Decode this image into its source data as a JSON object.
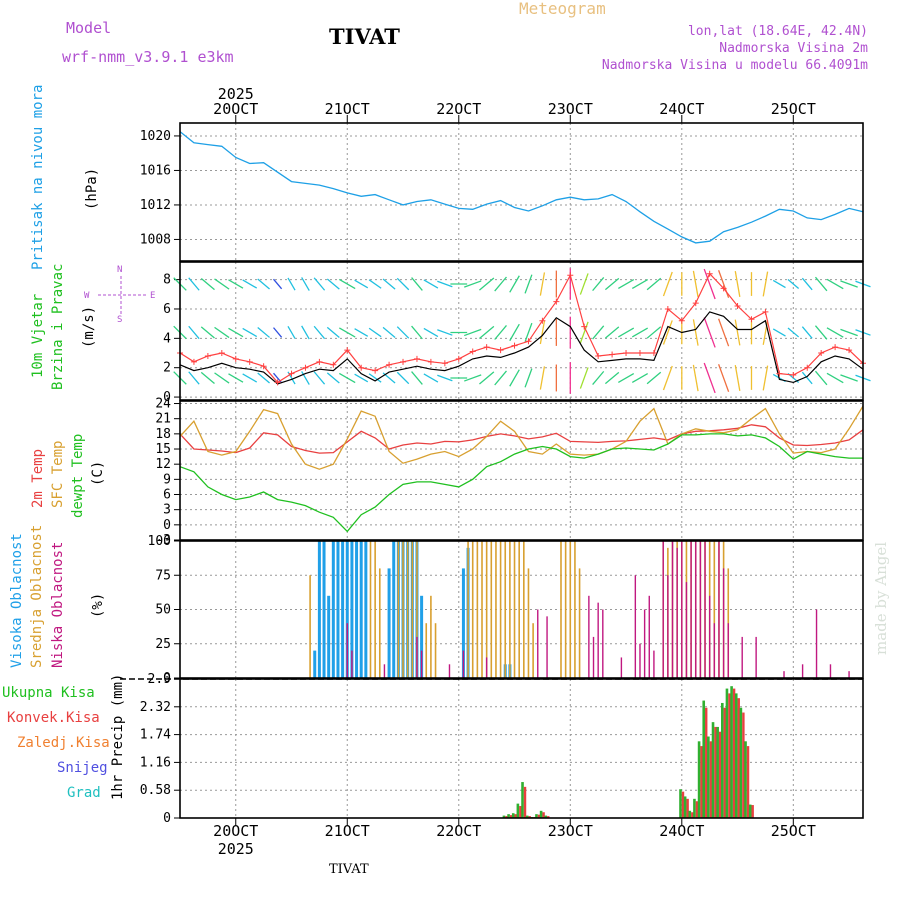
{
  "header": {
    "model_label": "Model",
    "model_name": "wrf-nmm_v3.9.1 e3km",
    "station": "TIVAT",
    "product": "Meteogram",
    "lonlat": "lon,lat (18.64E, 42.4N)",
    "elevation": "Nadmorska Visina 2m",
    "model_elevation": "Nadmorska Visina u modelu 66.4091m",
    "footer_station": "TIVAT",
    "credit": "made by Angel"
  },
  "colors": {
    "pressure": "#1ea0e6",
    "wind_speed": "#ff4040",
    "wind_gust": "#000000",
    "temp2m": "#e84040",
    "sfc_temp": "#d8a030",
    "dewpt": "#20c020",
    "high_cloud": "#20a0e8",
    "mid_cloud": "#d8a030",
    "low_cloud": "#c01880",
    "total_precip": "#30b030",
    "conv_precip": "#e84040",
    "strat_precip": "#f08030",
    "snow": "#5050e0",
    "hail": "#20c0c0"
  },
  "time_axis": {
    "top_year": "2025",
    "bottom_year": "2025",
    "day_labels": [
      "20OCT",
      "21OCT",
      "22OCT",
      "23OCT",
      "24OCT",
      "25OCT"
    ],
    "day_positions_hours": [
      12,
      36,
      60,
      84,
      108,
      132
    ],
    "range_hours": [
      0,
      147
    ]
  },
  "chart_data": [
    {
      "panel": "pressure",
      "type": "line",
      "ylabel_1": "Pritisak na nivou mora",
      "ylabel_2": "(hPa)",
      "unit": "hPa",
      "ylim": [
        1005.5,
        1021.5
      ],
      "yticks": [
        1008,
        1012,
        1016,
        1020
      ],
      "x": [
        0,
        3,
        6,
        9,
        12,
        15,
        18,
        21,
        24,
        27,
        30,
        33,
        36,
        39,
        42,
        45,
        48,
        51,
        54,
        57,
        60,
        63,
        66,
        69,
        72,
        75,
        78,
        81,
        84,
        87,
        90,
        93,
        96,
        99,
        102,
        105,
        108,
        111,
        114,
        117,
        120,
        123,
        126,
        129,
        132,
        135,
        138,
        141,
        144,
        147
      ],
      "values": [
        1020.5,
        1019.2,
        1019.0,
        1018.8,
        1017.5,
        1016.8,
        1016.9,
        1015.8,
        1014.7,
        1014.5,
        1014.3,
        1013.9,
        1013.4,
        1013.0,
        1013.2,
        1012.6,
        1012.0,
        1012.4,
        1012.6,
        1012.1,
        1011.6,
        1011.5,
        1012.1,
        1012.5,
        1011.7,
        1011.3,
        1011.9,
        1012.6,
        1012.9,
        1012.6,
        1012.7,
        1013.2,
        1012.4,
        1011.2,
        1010.1,
        1009.2,
        1008.3,
        1007.6,
        1007.8,
        1008.9,
        1009.4,
        1010.0,
        1010.7,
        1011.5,
        1011.3,
        1010.5,
        1010.3,
        1010.9,
        1011.6,
        1011.2
      ]
    },
    {
      "panel": "wind",
      "type": "line",
      "ylabel_1": "10m Vjetar",
      "ylabel_2": "Brzina i Pravac",
      "ylabel_3": "(m/s)",
      "compass": {
        "n": "N",
        "s": "S",
        "w": "W",
        "e": "E"
      },
      "ylim": [
        -0.2,
        9.2
      ],
      "yticks": [
        0,
        2,
        4,
        6,
        8
      ],
      "x": [
        0,
        3,
        6,
        9,
        12,
        15,
        18,
        21,
        24,
        27,
        30,
        33,
        36,
        39,
        42,
        45,
        48,
        51,
        54,
        57,
        60,
        63,
        66,
        69,
        72,
        75,
        78,
        81,
        84,
        87,
        90,
        93,
        96,
        99,
        102,
        105,
        108,
        111,
        114,
        117,
        120,
        123,
        126,
        129,
        132,
        135,
        138,
        141,
        144,
        147
      ],
      "series": [
        {
          "name": "speed",
          "values": [
            3.0,
            2.4,
            2.8,
            3.0,
            2.6,
            2.4,
            2.1,
            1.0,
            1.6,
            2.0,
            2.4,
            2.2,
            3.2,
            2.0,
            1.8,
            2.2,
            2.4,
            2.6,
            2.4,
            2.3,
            2.6,
            3.1,
            3.4,
            3.2,
            3.5,
            3.8,
            5.2,
            6.5,
            8.3,
            4.8,
            2.8,
            2.9,
            3.0,
            3.0,
            3.0,
            6.0,
            5.2,
            6.4,
            8.4,
            7.4,
            6.2,
            5.3,
            5.8,
            1.6,
            1.5,
            2.0,
            3.0,
            3.4,
            3.2,
            2.3
          ]
        },
        {
          "name": "gust",
          "values": [
            2.2,
            1.8,
            2.0,
            2.3,
            2.0,
            1.9,
            1.7,
            0.9,
            1.2,
            1.6,
            1.9,
            1.8,
            2.6,
            1.6,
            1.1,
            1.7,
            1.9,
            2.1,
            1.9,
            1.8,
            2.1,
            2.6,
            2.8,
            2.7,
            3.0,
            3.4,
            4.2,
            5.4,
            4.8,
            3.2,
            2.4,
            2.5,
            2.6,
            2.6,
            2.5,
            4.8,
            4.4,
            4.6,
            5.8,
            5.5,
            4.6,
            4.6,
            5.2,
            1.2,
            1.0,
            1.4,
            2.4,
            2.8,
            2.6,
            1.9
          ]
        }
      ],
      "wind_direction_deg": [
        315,
        320,
        310,
        305,
        300,
        300,
        310,
        320,
        330,
        330,
        320,
        310,
        300,
        300,
        305,
        310,
        315,
        320,
        300,
        290,
        270,
        250,
        230,
        220,
        210,
        200,
        190,
        180,
        180,
        200,
        220,
        230,
        240,
        240,
        230,
        200,
        180,
        170,
        160,
        160,
        170,
        180,
        190,
        300,
        310,
        320,
        320,
        300,
        290,
        290
      ]
    },
    {
      "panel": "temperature",
      "type": "line",
      "ylabel_1": "2m Temp",
      "ylabel_2": "SFC Temp",
      "ylabel_3": "dewpt Temp",
      "ylabel_4": "(C)",
      "ylim": [
        -3,
        24.5
      ],
      "yticks": [
        -3,
        0,
        3,
        6,
        9,
        12,
        15,
        18,
        21,
        24
      ],
      "x": [
        0,
        3,
        6,
        9,
        12,
        15,
        18,
        21,
        24,
        27,
        30,
        33,
        36,
        39,
        42,
        45,
        48,
        51,
        54,
        57,
        60,
        63,
        66,
        69,
        72,
        75,
        78,
        81,
        84,
        87,
        90,
        93,
        96,
        99,
        102,
        105,
        108,
        111,
        114,
        117,
        120,
        123,
        126,
        129,
        132,
        135,
        138,
        141,
        144,
        147
      ],
      "series": [
        {
          "name": "2m Temp",
          "values": [
            18.0,
            15.0,
            14.8,
            14.6,
            14.3,
            15.2,
            18.2,
            17.8,
            15.5,
            14.7,
            14.2,
            14.3,
            16.4,
            18.5,
            17.2,
            15.0,
            15.8,
            16.2,
            16.0,
            16.5,
            16.4,
            16.8,
            17.5,
            18.0,
            17.6,
            17.0,
            17.4,
            18.1,
            16.5,
            16.4,
            16.3,
            16.5,
            16.6,
            16.9,
            17.2,
            16.8,
            18.0,
            18.5,
            18.6,
            18.8,
            19.1,
            19.8,
            19.4,
            17.2,
            15.8,
            15.7,
            15.9,
            16.2,
            16.8,
            18.8
          ]
        },
        {
          "name": "SFC Temp",
          "values": [
            17.5,
            20.5,
            14.5,
            13.8,
            14.5,
            18.5,
            22.8,
            22.0,
            16.0,
            12.0,
            11.0,
            12.0,
            17.0,
            22.5,
            21.5,
            14.5,
            12.2,
            13.0,
            14.0,
            14.5,
            13.5,
            15.0,
            17.5,
            20.5,
            18.5,
            14.5,
            14.0,
            16.0,
            14.0,
            13.8,
            14.0,
            15.0,
            16.5,
            20.5,
            23.0,
            16.0,
            18.0,
            19.0,
            18.5,
            18.2,
            18.8,
            21.0,
            23.0,
            18.0,
            14.2,
            14.5,
            14.3,
            15.0,
            19.0,
            23.5
          ]
        },
        {
          "name": "dewpt Temp",
          "values": [
            11.5,
            10.5,
            7.5,
            6.0,
            5.0,
            5.5,
            6.5,
            5.0,
            4.5,
            3.8,
            2.5,
            1.5,
            -1.3,
            2.0,
            3.5,
            6.0,
            8.0,
            8.5,
            8.5,
            8.0,
            7.5,
            9.0,
            11.5,
            12.5,
            14.0,
            15.0,
            15.5,
            15.0,
            13.5,
            13.2,
            14.0,
            15.0,
            15.2,
            15.0,
            14.8,
            16.0,
            17.8,
            17.8,
            18.0,
            18.0,
            17.6,
            17.8,
            17.2,
            15.5,
            13.0,
            14.5,
            14.0,
            13.5,
            13.2,
            13.2
          ]
        }
      ]
    },
    {
      "panel": "clouds",
      "type": "bar",
      "ylabel_1": "Visoka Oblacnost",
      "ylabel_2": "Srednja Oblacnost",
      "ylabel_3": "Niska Oblacnost",
      "ylabel_4": "(%)",
      "ylim": [
        0,
        100
      ],
      "yticks": [
        0,
        25,
        50,
        75,
        100
      ],
      "series": [
        {
          "name": "Visoka Oblacnost",
          "x": [
            29,
            30,
            31,
            32,
            33,
            34,
            35,
            36,
            37,
            38,
            39,
            40,
            45,
            46,
            47,
            48,
            49,
            50,
            51,
            52,
            61,
            62,
            70,
            71
          ],
          "values": [
            20,
            100,
            100,
            60,
            100,
            100,
            100,
            100,
            100,
            100,
            100,
            100,
            80,
            100,
            100,
            100,
            100,
            100,
            100,
            60,
            80,
            95,
            10,
            10
          ]
        },
        {
          "name": "Srednja Oblacnost",
          "x": [
            28,
            41,
            42,
            43,
            47,
            48,
            49,
            50,
            51,
            53,
            54,
            55,
            62,
            63,
            64,
            65,
            66,
            67,
            68,
            69,
            70,
            71,
            72,
            73,
            74,
            75,
            76,
            82,
            83,
            84,
            85,
            86,
            104,
            105,
            106,
            107,
            108,
            109,
            110,
            111,
            112,
            113,
            114,
            115,
            116,
            117,
            118
          ],
          "values": [
            75,
            100,
            100,
            80,
            100,
            100,
            100,
            100,
            100,
            40,
            60,
            40,
            100,
            100,
            100,
            100,
            100,
            100,
            100,
            100,
            100,
            100,
            100,
            100,
            100,
            80,
            40,
            100,
            100,
            100,
            100,
            80,
            100,
            95,
            100,
            100,
            100,
            100,
            100,
            100,
            100,
            100,
            100,
            100,
            100,
            100,
            80
          ]
        },
        {
          "name": "Niska Oblacnost",
          "x": [
            36,
            37,
            44,
            51,
            52,
            58,
            61,
            66,
            77,
            79,
            88,
            89,
            90,
            91,
            95,
            98,
            99,
            100,
            101,
            102,
            104,
            105,
            106,
            107,
            108,
            109,
            110,
            111,
            112,
            113,
            114,
            115,
            116,
            117,
            118,
            121,
            124,
            130,
            134,
            137,
            140,
            144
          ],
          "values": [
            40,
            20,
            10,
            30,
            20,
            10,
            20,
            15,
            50,
            45,
            60,
            30,
            55,
            50,
            15,
            75,
            25,
            50,
            60,
            20,
            100,
            75,
            100,
            95,
            100,
            70,
            100,
            100,
            100,
            100,
            60,
            40,
            100,
            80,
            40,
            30,
            30,
            5,
            10,
            50,
            10,
            5
          ]
        }
      ]
    },
    {
      "panel": "precipitation",
      "type": "bar",
      "ylabel_1": "Ukupna Kisa",
      "ylabel_2": "Konvek.Kisa",
      "ylabel_3": "Zaledj.Kisa",
      "ylabel_4": "Snijeg",
      "ylabel_5": "Grad",
      "ylabel_6": "1hr Precip (mm)",
      "ylim": [
        0,
        2.9
      ],
      "yticks": [
        0,
        0.58,
        1.16,
        1.74,
        2.32,
        2.9
      ],
      "x": [
        70,
        71,
        72,
        73,
        74,
        75,
        76,
        77,
        78,
        79,
        108,
        109,
        110,
        111,
        112,
        113,
        114,
        115,
        116,
        117,
        118,
        119,
        120,
        121,
        122,
        123,
        124
      ],
      "series": [
        {
          "name": "Ukupna Kisa",
          "values": [
            0.05,
            0.08,
            0.1,
            0.3,
            0.75,
            0.05,
            0.02,
            0.08,
            0.15,
            0.05,
            0.6,
            0.45,
            0.15,
            0.4,
            1.6,
            2.45,
            1.7,
            2.0,
            1.9,
            2.4,
            2.7,
            2.75,
            2.6,
            2.3,
            1.6,
            0.28,
            0.0
          ]
        },
        {
          "name": "Konvek.Kisa",
          "values": [
            0.04,
            0.06,
            0.08,
            0.25,
            0.65,
            0.04,
            0.02,
            0.07,
            0.12,
            0.04,
            0.55,
            0.4,
            0.12,
            0.35,
            1.5,
            2.3,
            1.6,
            1.9,
            1.8,
            2.3,
            2.6,
            2.7,
            2.5,
            2.2,
            1.5,
            0.27,
            0.0
          ]
        }
      ]
    }
  ]
}
